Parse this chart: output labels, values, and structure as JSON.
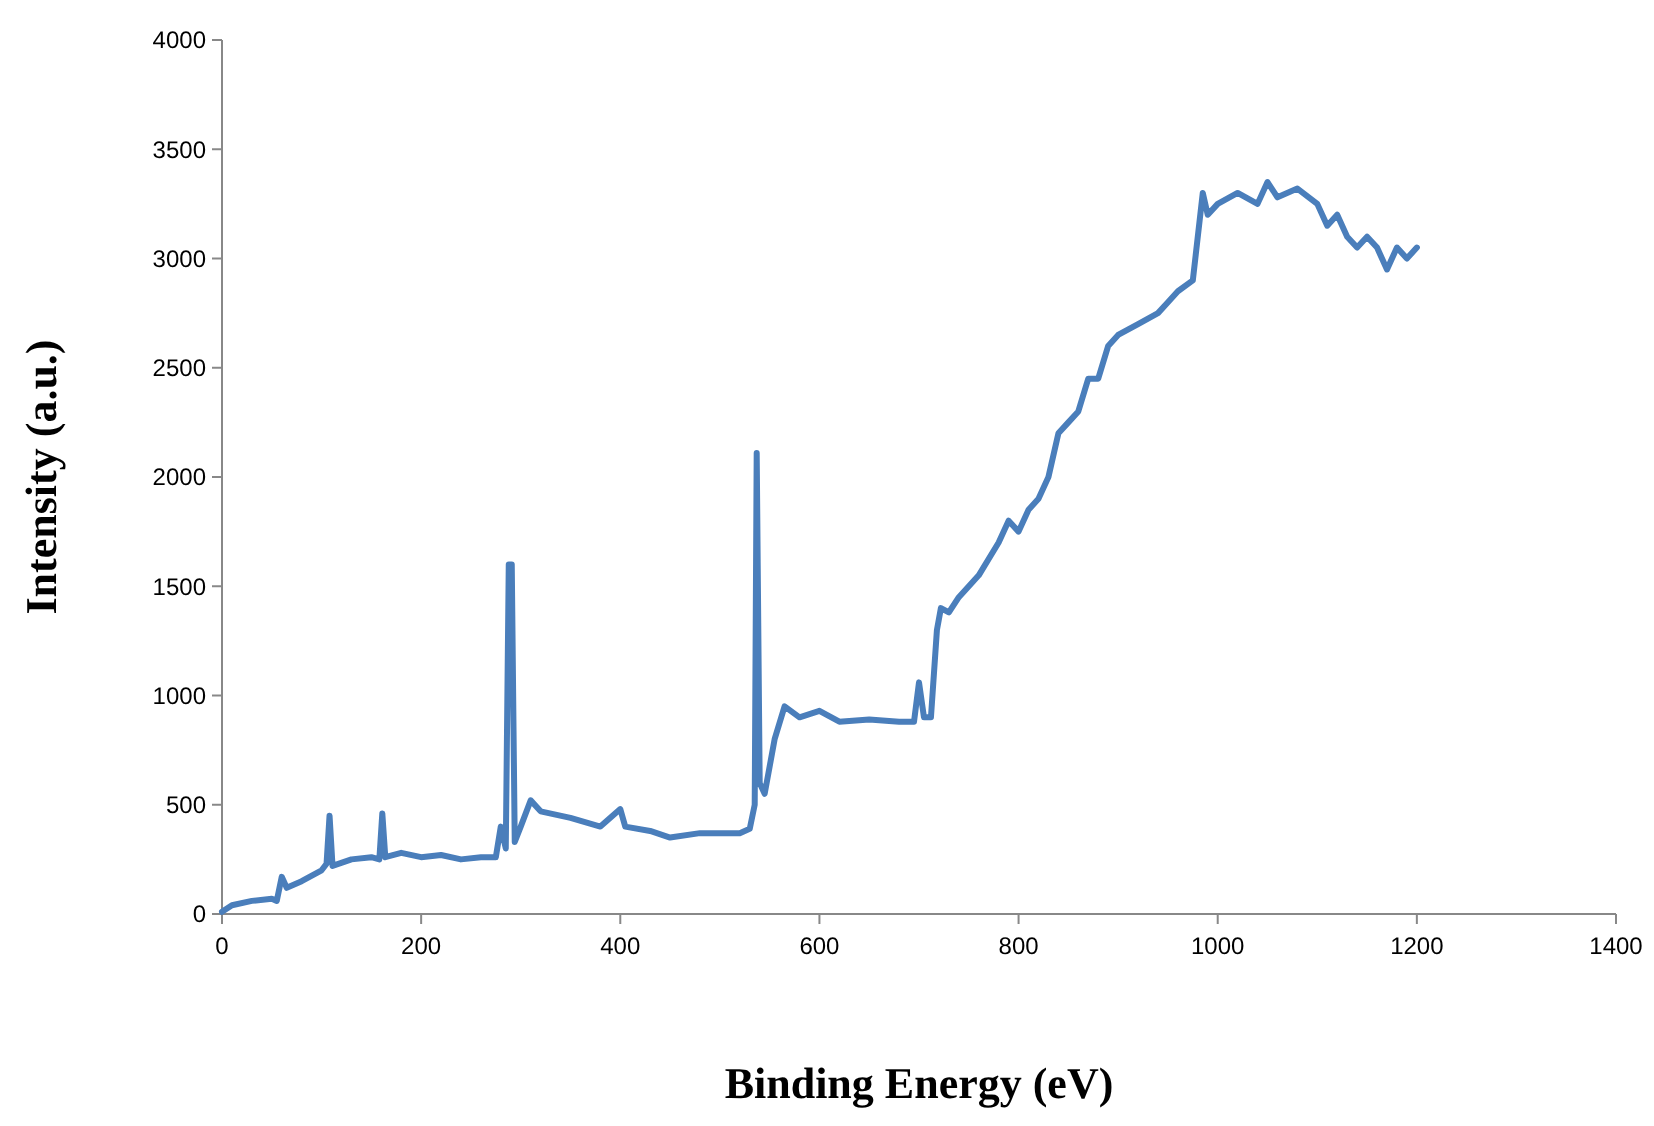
{
  "chart_data": {
    "type": "line",
    "xlabel": "Binding Energy (eV)",
    "ylabel": "Intensity (a.u.)",
    "xlim": [
      0,
      1400
    ],
    "xticks": [
      0,
      200,
      400,
      600,
      800,
      1000,
      1200,
      1400
    ],
    "ylim": [
      0,
      4000
    ],
    "yticks": [
      0,
      500,
      1000,
      1500,
      2000,
      2500,
      3000,
      3500,
      4000
    ],
    "grid": false,
    "marker": "none",
    "line_style": "solid",
    "series": [
      {
        "color": "#4a7ebb",
        "x": [
          0,
          10,
          30,
          50,
          55,
          60,
          65,
          80,
          100,
          105,
          108,
          111,
          130,
          150,
          158,
          161,
          164,
          180,
          200,
          220,
          240,
          260,
          275,
          280,
          285,
          288,
          291,
          294,
          300,
          310,
          320,
          350,
          380,
          400,
          405,
          430,
          450,
          480,
          500,
          520,
          530,
          535,
          537,
          540,
          545,
          555,
          565,
          580,
          600,
          620,
          650,
          680,
          695,
          700,
          705,
          712,
          718,
          722,
          730,
          740,
          760,
          780,
          790,
          800,
          810,
          820,
          830,
          840,
          850,
          860,
          870,
          880,
          890,
          900,
          920,
          940,
          950,
          960,
          975,
          985,
          990,
          1000,
          1020,
          1040,
          1050,
          1060,
          1080,
          1100,
          1110,
          1120,
          1130,
          1140,
          1150,
          1160,
          1170,
          1180,
          1190,
          1200
        ],
        "values": [
          10,
          40,
          60,
          70,
          60,
          170,
          120,
          150,
          200,
          230,
          450,
          220,
          250,
          260,
          250,
          460,
          260,
          280,
          260,
          270,
          250,
          260,
          260,
          400,
          300,
          1600,
          1600,
          330,
          400,
          520,
          470,
          440,
          400,
          480,
          400,
          380,
          350,
          370,
          370,
          370,
          390,
          500,
          2110,
          600,
          550,
          800,
          950,
          900,
          930,
          880,
          890,
          880,
          880,
          1060,
          900,
          900,
          1300,
          1400,
          1380,
          1450,
          1550,
          1700,
          1800,
          1750,
          1850,
          1900,
          2000,
          2200,
          2250,
          2300,
          2450,
          2450,
          2600,
          2650,
          2700,
          2750,
          2800,
          2850,
          2900,
          3300,
          3200,
          3250,
          3300,
          3250,
          3350,
          3280,
          3320,
          3250,
          3150,
          3200,
          3100,
          3050,
          3100,
          3050,
          2950,
          3050,
          3000,
          3050
        ]
      }
    ]
  }
}
